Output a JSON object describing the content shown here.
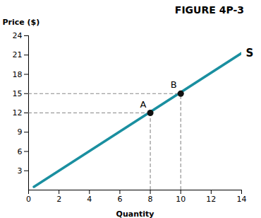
{
  "chart_data": {
    "type": "line",
    "title": "FIGURE 4P-3",
    "x_label": "Quantity",
    "y_label": "Price ($)",
    "series": [
      {
        "name": "S",
        "type": "line",
        "color": "#1A8FA0",
        "x": [
          0.35,
          14
        ],
        "values": [
          0.5,
          21.3
        ]
      },
      {
        "type": "scatter",
        "color": "#111111",
        "marker": "circle",
        "line_style": "dashed",
        "x": [
          8,
          10
        ],
        "values": [
          12,
          15
        ],
        "labels": [
          "A",
          "B"
        ]
      }
    ],
    "xlim": [
      0,
      14
    ],
    "ylim": [
      0,
      24
    ],
    "xticks": [
      0,
      2,
      4,
      6,
      8,
      10,
      12,
      14
    ],
    "yticks": [
      3,
      6,
      9,
      12,
      15,
      18,
      21,
      24
    ],
    "grid": false
  }
}
